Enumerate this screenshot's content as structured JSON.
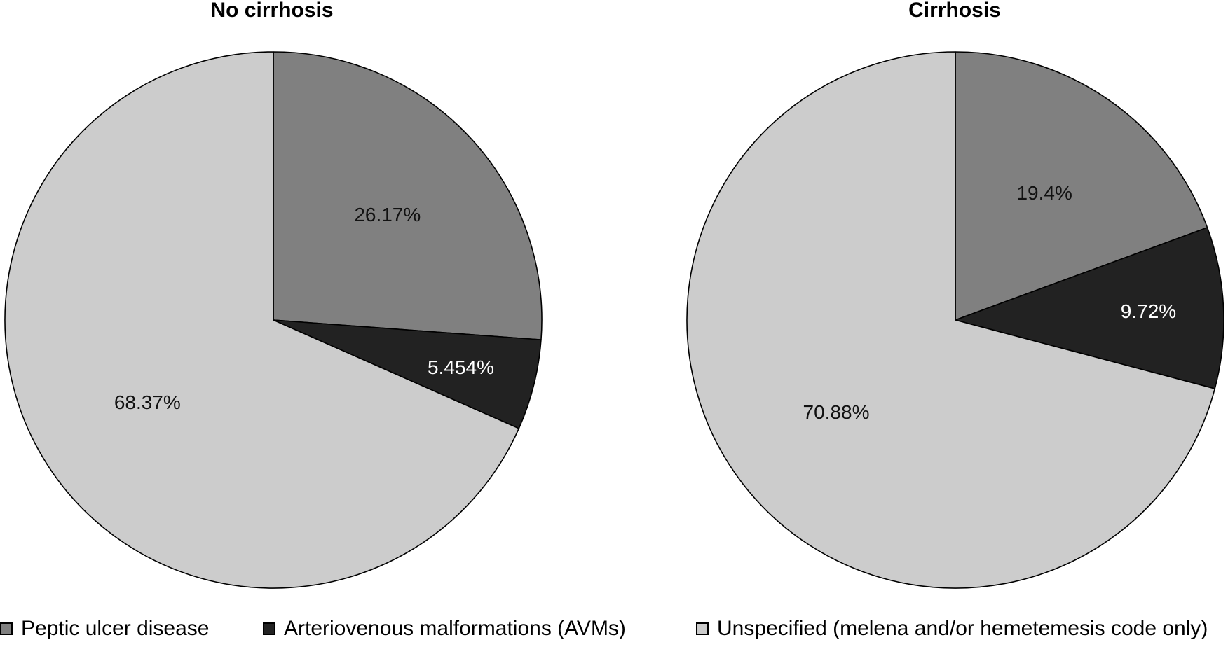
{
  "chart_data": [
    {
      "type": "pie",
      "title": "No cirrhosis",
      "categories": [
        "Peptic ulcer disease",
        "Arteriovenous malformations (AVMs)",
        "Unspecified (melena and/or hemetemesis code only)"
      ],
      "values": [
        26.17,
        5.454,
        68.37
      ],
      "labels": [
        "26.17%",
        "5.454%",
        "68.37%"
      ],
      "colors": [
        "#808080",
        "#222222",
        "#cccccc"
      ]
    },
    {
      "type": "pie",
      "title": "Cirrhosis",
      "categories": [
        "Peptic ulcer disease",
        "Arteriovenous malformations (AVMs)",
        "Unspecified (melena and/or hemetemesis code only)"
      ],
      "values": [
        19.4,
        9.72,
        70.88
      ],
      "labels": [
        "19.4%",
        "9.72%",
        "70.88%"
      ],
      "colors": [
        "#808080",
        "#222222",
        "#cccccc"
      ]
    }
  ],
  "legend": {
    "placement": "bottom",
    "items": [
      {
        "label": "Peptic ulcer disease",
        "color": "#808080"
      },
      {
        "label": "Arteriovenous malformations (AVMs)",
        "color": "#222222"
      },
      {
        "label": "Unspecified (melena and/or hemetemesis code only)",
        "color": "#cccccc"
      }
    ]
  }
}
